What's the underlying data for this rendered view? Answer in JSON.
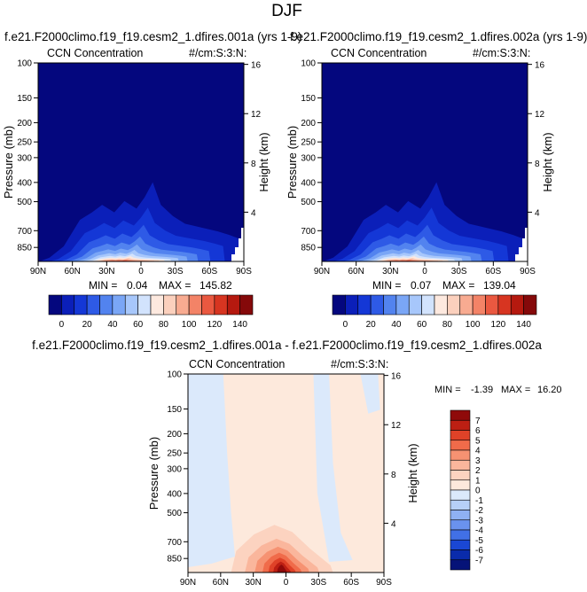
{
  "figure": {
    "title": "DJF"
  },
  "chart_data": [
    {
      "type": "contour",
      "panel_title": "f.e21.F2000climo.f19_f19.cesm2_1.dfires.001a (yrs 1-9)",
      "variable_label": "CCN Concentration",
      "units_label": "#/cm:S:3:N:",
      "ylabel": "Pressure (mb)",
      "ylabel_right": "Height (km)",
      "x_ticks": [
        "90N",
        "60N",
        "30N",
        "0",
        "30S",
        "60S",
        "90S"
      ],
      "y_ticks": [
        "100",
        "150",
        "200",
        "250",
        "300",
        "400",
        "500",
        "700",
        "850"
      ],
      "y_ticks_right": [
        "16",
        "12",
        "8",
        "4"
      ],
      "min_label": "MIN =",
      "min_value": "0.04",
      "max_label": "MAX =",
      "max_value": "145.82",
      "colorbar_levels": [
        "0",
        "20",
        "40",
        "60",
        "80",
        "100",
        "120",
        "140"
      ]
    },
    {
      "type": "contour",
      "panel_title": "f.e21.F2000climo.f19_f19.cesm2_1.dfires.002a (yrs 1-9)",
      "variable_label": "CCN Concentration",
      "units_label": "#/cm:S:3:N:",
      "ylabel": "Pressure (mb)",
      "ylabel_right": "Height (km)",
      "x_ticks": [
        "90N",
        "60N",
        "30N",
        "0",
        "30S",
        "60S",
        "90S"
      ],
      "y_ticks": [
        "100",
        "150",
        "200",
        "250",
        "300",
        "400",
        "500",
        "700",
        "850"
      ],
      "y_ticks_right": [
        "16",
        "12",
        "8",
        "4"
      ],
      "min_label": "MIN =",
      "min_value": "0.07",
      "max_label": "MAX =",
      "max_value": "139.04",
      "colorbar_levels": [
        "0",
        "20",
        "40",
        "60",
        "80",
        "100",
        "120",
        "140"
      ]
    },
    {
      "type": "contour",
      "panel_title": "f.e21.F2000climo.f19_f19.cesm2_1.dfires.001a - f.e21.F2000climo.f19_f19.cesm2_1.dfires.002a",
      "variable_label": "CCN Concentration",
      "units_label": "#/cm:S:3:N:",
      "ylabel": "Pressure (mb)",
      "ylabel_right": "Height (km)",
      "x_ticks": [
        "90N",
        "60N",
        "30N",
        "0",
        "30S",
        "60S",
        "90S"
      ],
      "y_ticks": [
        "100",
        "150",
        "200",
        "250",
        "300",
        "400",
        "500",
        "700",
        "850"
      ],
      "y_ticks_right": [
        "16",
        "12",
        "8",
        "4"
      ],
      "min_label": "MIN =",
      "min_value": "-1.39",
      "max_label": "MAX =",
      "max_value": "16.20",
      "colorbar_levels": [
        "7",
        "6",
        "5",
        "4",
        "3",
        "2",
        "1",
        "0",
        "-1",
        "-2",
        "-3",
        "-4",
        "-5",
        "-6",
        "-7"
      ]
    }
  ],
  "colors": {
    "seq": [
      "#04077e",
      "#0b1fb9",
      "#1437d6",
      "#2e5ae6",
      "#5283ef",
      "#7aa6f6",
      "#a7c7fb",
      "#d2e3fd",
      "#fde9df",
      "#fbd0bd",
      "#f8ab91",
      "#f38367",
      "#ea5840",
      "#d73521",
      "#b5190f",
      "#85090a"
    ],
    "div": [
      "#8f0a0a",
      "#bd1f13",
      "#df4228",
      "#f06b4a",
      "#f69272",
      "#fab69c",
      "#fcd3c0",
      "#fde9dc",
      "#dbe9fb",
      "#b6d0f8",
      "#8fb1f3",
      "#6a92ee",
      "#4170e6",
      "#1a47d4",
      "#0a2bab",
      "#061378"
    ]
  }
}
